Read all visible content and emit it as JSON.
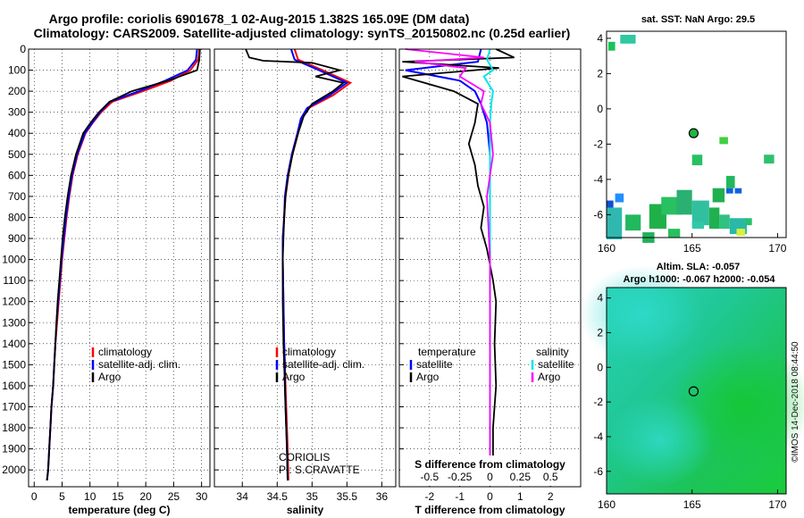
{
  "title_line1": "Argo profile: coriolis 6901678_1 02-Aug-2015 1.382S 165.09E (DM data)",
  "title_line2": "Climatology: CARS2009. Satellite-adjusted climatology: synTS_20150802.nc (0.25d earlier)",
  "credit": "©IMOS 14-Dec-2018 08:44:50",
  "colors": {
    "climatology": "#ff0000",
    "satellite": "#0000ff",
    "argo": "#000000",
    "t_satellite": "#0000ff",
    "s_satellite": "#00e5ee",
    "s_argo": "#ff00ff"
  },
  "chart_data": [
    {
      "id": "temperature",
      "type": "line",
      "xlabel": "temperature (deg C)",
      "ylabel": "",
      "xlim": [
        -1,
        31.5
      ],
      "ylim": [
        2080,
        0
      ],
      "xticks": [
        0,
        5,
        10,
        15,
        20,
        25,
        30
      ],
      "xticklabels": [
        "0",
        "5",
        "10",
        "15",
        "20",
        "25",
        "30"
      ],
      "yticks": [
        0,
        100,
        200,
        300,
        400,
        500,
        600,
        700,
        800,
        900,
        1000,
        1100,
        1200,
        1300,
        1400,
        1500,
        1600,
        1700,
        1800,
        1900,
        2000
      ],
      "yticklabels": [
        "0",
        "100",
        "200",
        "300",
        "400",
        "500",
        "600",
        "700",
        "800",
        "900",
        "1000",
        "1100",
        "1200",
        "1300",
        "1400",
        "1500",
        "1600",
        "1700",
        "1800",
        "1900",
        "2000"
      ],
      "grid": true,
      "legend": {
        "position": "lower-right",
        "entries": [
          "climatology",
          "satellite-adj. clim.",
          "Argo"
        ]
      },
      "series": [
        {
          "name": "climatology",
          "color": "#ff0000",
          "x": [
            29.6,
            29.4,
            28.0,
            24.5,
            19.5,
            14.0,
            12.0,
            10.5,
            9.2,
            7.8,
            6.9,
            6.3,
            5.8,
            5.4,
            5.0,
            4.7,
            4.4,
            4.1,
            3.8,
            3.6,
            3.4,
            3.1,
            2.9,
            2.7,
            2.5,
            2.3
          ],
          "y": [
            0,
            50,
            100,
            150,
            200,
            250,
            300,
            350,
            400,
            500,
            600,
            700,
            800,
            900,
            1000,
            1100,
            1200,
            1300,
            1400,
            1500,
            1600,
            1700,
            1800,
            1900,
            2000,
            2050
          ]
        },
        {
          "name": "satellite-adj. clim.",
          "color": "#0000ff",
          "x": [
            29.2,
            29.0,
            27.5,
            23.5,
            18.8,
            13.6,
            11.8,
            10.4,
            9.1,
            7.7,
            6.8,
            6.2,
            5.7,
            5.3,
            4.9,
            4.6,
            4.3,
            4.0,
            3.8,
            3.6,
            3.4,
            3.1,
            2.9,
            2.7,
            2.5,
            2.3
          ],
          "y": [
            0,
            50,
            100,
            150,
            200,
            250,
            300,
            350,
            400,
            500,
            600,
            700,
            800,
            900,
            1000,
            1100,
            1200,
            1300,
            1400,
            1500,
            1600,
            1700,
            1800,
            1900,
            2000,
            2050
          ]
        },
        {
          "name": "Argo",
          "color": "#000000",
          "x": [
            29.7,
            29.6,
            29.2,
            24.0,
            17.5,
            13.5,
            11.6,
            10.1,
            8.8,
            7.5,
            6.6,
            6.0,
            5.5,
            5.1,
            4.8,
            4.5,
            4.2,
            4.0,
            3.8,
            3.6,
            3.4,
            3.1,
            2.9,
            2.7,
            2.5,
            2.3
          ],
          "y": [
            0,
            50,
            100,
            150,
            200,
            250,
            300,
            350,
            400,
            500,
            600,
            700,
            800,
            900,
            1000,
            1100,
            1200,
            1300,
            1400,
            1500,
            1600,
            1700,
            1800,
            1900,
            2000,
            2050
          ]
        }
      ]
    },
    {
      "id": "salinity",
      "type": "line",
      "xlabel": "salinity",
      "xlim": [
        33.6,
        36.2
      ],
      "ylim": [
        2080,
        0
      ],
      "xticks": [
        34,
        34.5,
        35,
        35.5,
        36
      ],
      "xticklabels": [
        "34",
        "34.5",
        "35",
        "35.5",
        "36"
      ],
      "grid": true,
      "legend": {
        "position": "lower-right",
        "entries": [
          "climatology",
          "satellite-adj. clim.",
          "Argo"
        ]
      },
      "annotation": [
        "CORIOLIS",
        "PI: S.CRAVATTE"
      ],
      "series": [
        {
          "name": "climatology",
          "color": "#ff0000",
          "x": [
            34.75,
            34.8,
            35.15,
            35.55,
            35.3,
            34.95,
            34.85,
            34.8,
            34.72,
            34.66,
            34.62,
            34.6,
            34.58,
            34.58,
            34.59,
            34.6,
            34.61,
            34.62,
            34.63,
            34.64,
            34.65,
            34.66
          ],
          "y": [
            0,
            50,
            100,
            160,
            220,
            280,
            330,
            400,
            500,
            600,
            700,
            800,
            900,
            1000,
            1200,
            1400,
            1500,
            1600,
            1700,
            1800,
            1900,
            2050
          ]
        },
        {
          "name": "satellite-adj. clim.",
          "color": "#0000ff",
          "x": [
            34.7,
            34.75,
            35.1,
            35.5,
            35.25,
            34.93,
            34.84,
            34.79,
            34.71,
            34.65,
            34.61,
            34.6,
            34.58,
            34.58,
            34.59,
            34.6,
            34.61,
            34.61,
            34.62,
            34.63,
            34.64,
            34.65
          ],
          "y": [
            0,
            50,
            100,
            160,
            220,
            280,
            330,
            400,
            500,
            600,
            700,
            800,
            900,
            1000,
            1200,
            1400,
            1500,
            1600,
            1700,
            1800,
            1900,
            2050
          ]
        },
        {
          "name": "Argo",
          "color": "#000000",
          "x": [
            34.05,
            34.1,
            34.3,
            35.0,
            35.4,
            35.05,
            35.45,
            35.3,
            35.0,
            34.88,
            34.8,
            34.72,
            34.66,
            34.62,
            34.6,
            34.58,
            34.58,
            34.59,
            34.6,
            34.61,
            34.62,
            34.63,
            34.64,
            34.65
          ],
          "y": [
            0,
            40,
            55,
            65,
            100,
            130,
            160,
            200,
            260,
            320,
            400,
            500,
            600,
            700,
            800,
            1000,
            1200,
            1400,
            1500,
            1600,
            1700,
            1800,
            1900,
            2050
          ]
        }
      ]
    },
    {
      "id": "difference",
      "type": "line",
      "xlabel": "T difference from climatology",
      "xlabel_top": "S difference from climatology",
      "xlim": [
        -3,
        3
      ],
      "ylim": [
        2080,
        0
      ],
      "xticks": [
        -2,
        -1,
        0,
        1,
        2
      ],
      "xticklabels": [
        "-2",
        "-1",
        "0",
        "1",
        "2"
      ],
      "xticks_top_positions": [
        -2,
        -1,
        0,
        1,
        2
      ],
      "xticklabels_top": [
        "-0.5",
        "-0.25",
        "0",
        "0.25",
        "0.5"
      ],
      "grid": true,
      "legend": {
        "left_title": "temperature",
        "left_entries": [
          "satellite",
          "Argo"
        ],
        "right_title": "salinity",
        "right_entries": [
          "satellite",
          "Argo"
        ]
      },
      "series": [
        {
          "name": "satellite",
          "group": "temperature",
          "color": "#0000ff",
          "x": [
            -0.3,
            -0.4,
            -2.8,
            -1.0,
            -0.5,
            -0.3,
            -0.1,
            0.0,
            0.0,
            0.0,
            0.0,
            0.0
          ],
          "y": [
            0,
            60,
            100,
            150,
            200,
            260,
            350,
            500,
            800,
            1200,
            1600,
            2050
          ]
        },
        {
          "name": "Argo",
          "group": "temperature",
          "color": "#000000",
          "x": [
            0.2,
            0.8,
            -2.9,
            0.3,
            -2.9,
            -1.2,
            -0.4,
            -0.5,
            -0.7,
            -0.5,
            -0.4,
            -0.2,
            -0.3,
            -0.1,
            0.1,
            0.2,
            0.15,
            0.2,
            0.1,
            0.1
          ],
          "y": [
            0,
            40,
            60,
            90,
            130,
            200,
            260,
            350,
            450,
            550,
            650,
            750,
            850,
            950,
            1100,
            1200,
            1400,
            1600,
            1800,
            2050
          ]
        },
        {
          "name": "satellite",
          "group": "salinity",
          "color": "#00e5ee",
          "x": [
            0.0,
            -0.1,
            0.1,
            -0.2,
            0.1,
            0.05,
            0.0,
            0.0,
            0.0,
            0.0,
            0.0
          ],
          "y": [
            0,
            50,
            100,
            130,
            200,
            250,
            350,
            500,
            900,
            1400,
            2050
          ]
        },
        {
          "name": "Argo",
          "group": "salinity",
          "color": "#ff00ff",
          "x": [
            -2.8,
            -0.2,
            -2.5,
            -0.8,
            -1.0,
            -0.2,
            -0.3,
            0.0,
            0.1,
            -0.1,
            0.0,
            0.0,
            0.0
          ],
          "y": [
            0,
            40,
            60,
            90,
            130,
            200,
            260,
            350,
            500,
            700,
            1000,
            1500,
            2050
          ]
        }
      ]
    },
    {
      "id": "sst_map",
      "type": "heatmap",
      "title": "sat. SST: NaN Argo: 29.5",
      "xlim": [
        160,
        170.5
      ],
      "ylim": [
        -7.3,
        4.4
      ],
      "xticks": [
        160,
        165,
        170
      ],
      "xticklabels": [
        "160",
        "165",
        "170"
      ],
      "yticks": [
        4,
        2,
        0,
        -2,
        -4,
        -6
      ],
      "yticklabels": [
        "4",
        "2",
        "0",
        "-2",
        "-4",
        "-6"
      ],
      "argo_position": [
        165.09,
        -1.382
      ],
      "patches": [
        [
          160.1,
          3.8,
          0.4,
          0.5,
          "#19c35a"
        ],
        [
          160.8,
          4.2,
          0.9,
          0.5,
          "#30c8a0"
        ],
        [
          165.0,
          -2.6,
          0.6,
          0.6,
          "#28c060"
        ],
        [
          166.2,
          -4.5,
          0.7,
          0.8,
          "#20b050"
        ],
        [
          166.6,
          -1.6,
          0.5,
          0.4,
          "#40d040"
        ],
        [
          167.0,
          -3.8,
          0.5,
          0.7,
          "#22b85a"
        ],
        [
          167.0,
          -4.5,
          0.4,
          0.3,
          "#1060e0"
        ],
        [
          167.5,
          -4.5,
          0.4,
          0.3,
          "#1060e0"
        ],
        [
          169.2,
          -2.6,
          0.6,
          0.5,
          "#30c070"
        ],
        [
          160.5,
          -4.8,
          0.5,
          0.5,
          "#2090ff"
        ],
        [
          160.0,
          -5.2,
          0.4,
          0.5,
          "#1050d0"
        ],
        [
          160.0,
          -5.6,
          0.9,
          1.8,
          "#30b8b0"
        ],
        [
          161.1,
          -6.0,
          0.9,
          0.9,
          "#22b860"
        ],
        [
          162.5,
          -5.4,
          1.0,
          1.4,
          "#20b04a"
        ],
        [
          163.2,
          -5.0,
          1.2,
          1.0,
          "#28c060"
        ],
        [
          164.1,
          -4.6,
          0.9,
          1.4,
          "#2ab070"
        ],
        [
          165.0,
          -5.2,
          1.0,
          1.4,
          "#30c0a0"
        ],
        [
          166.0,
          -5.6,
          0.6,
          1.2,
          "#20b050"
        ],
        [
          166.6,
          -6.0,
          0.6,
          0.8,
          "#30c080"
        ],
        [
          167.2,
          -6.2,
          1.0,
          0.9,
          "#2ab8a8"
        ],
        [
          167.6,
          -6.8,
          0.5,
          0.4,
          "#d8f040"
        ],
        [
          168.1,
          -6.2,
          0.4,
          0.4,
          "#28c070"
        ],
        [
          162.1,
          -7.0,
          0.7,
          0.6,
          "#22b05a"
        ],
        [
          163.6,
          -6.8,
          0.7,
          0.5,
          "#28c060"
        ],
        [
          165.0,
          -6.4,
          0.7,
          0.4,
          "#30c8a8"
        ]
      ]
    },
    {
      "id": "sla_map",
      "type": "heatmap",
      "title": "Altim. SLA: -0.057",
      "subtitle": "Argo h1000: -0.067 h2000: -0.054",
      "xlim": [
        160,
        170.5
      ],
      "ylim": [
        -7.3,
        4.6
      ],
      "xticks": [
        160,
        165,
        170
      ],
      "xticklabels": [
        "160",
        "165",
        "170"
      ],
      "yticks": [
        4,
        2,
        0,
        -2,
        -4,
        -6
      ],
      "yticklabels": [
        "4",
        "2",
        "0",
        "-2",
        "-4",
        "-6"
      ],
      "argo_position": [
        165.09,
        -1.382
      ]
    }
  ]
}
